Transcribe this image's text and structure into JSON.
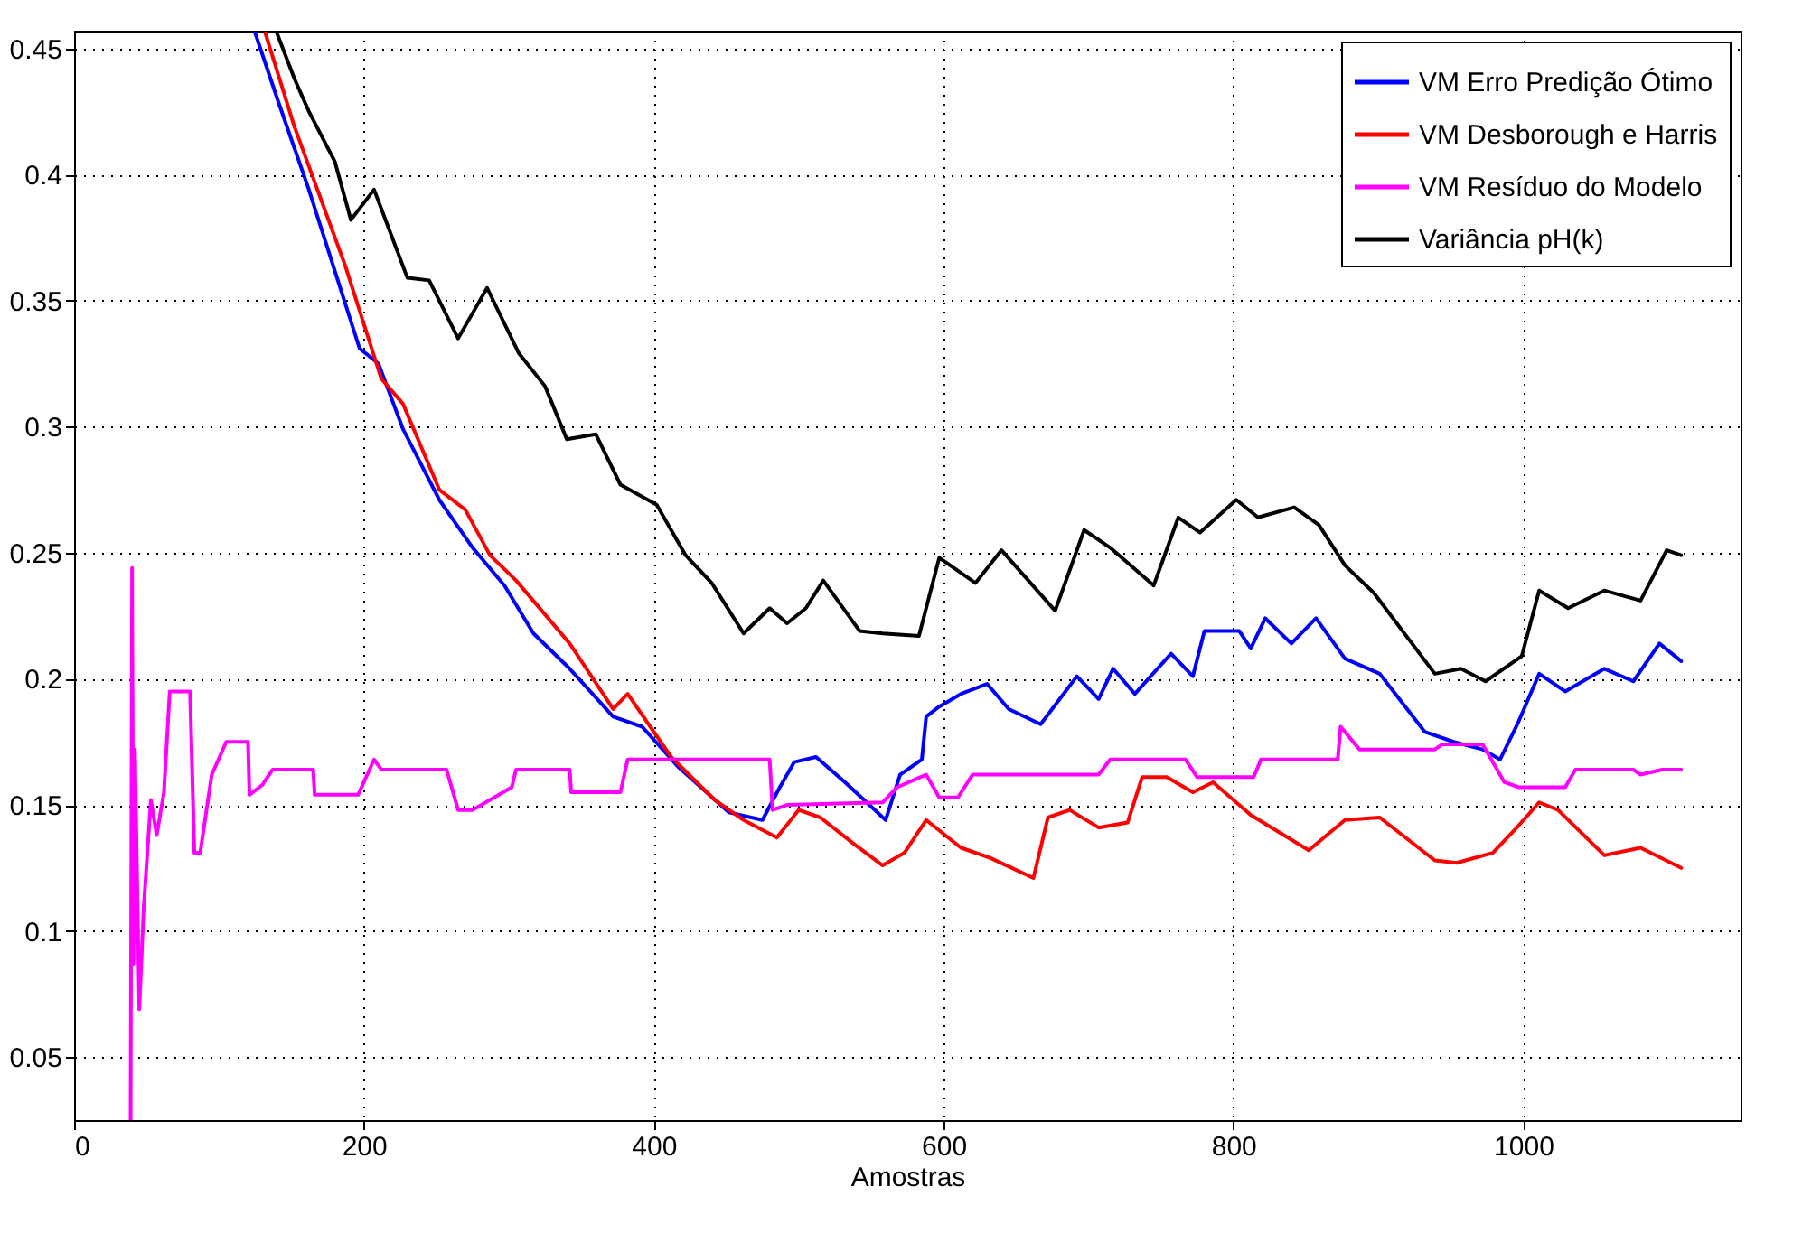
{
  "chart_data": {
    "type": "line",
    "xlabel": "Amostras",
    "xlim": [
      0,
      1150
    ],
    "ylim": [
      0.025,
      0.457
    ],
    "xticks": [
      0,
      200,
      400,
      600,
      800,
      1000
    ],
    "yticks": [
      0.05,
      0.1,
      0.15,
      0.2,
      0.25,
      0.3,
      0.35,
      0.4,
      0.45
    ],
    "grid": true,
    "legend": "top right",
    "marker": "none",
    "line_style": "solid",
    "series": [
      {
        "name": "VM Erro Predição Ótimo",
        "color": "#0000ff",
        "x": [
          125,
          142,
          162,
          182,
          197,
          210,
          227,
          252,
          275,
          297,
          317,
          342,
          372,
          392,
          417,
          452,
          475,
          487,
          497,
          512,
          532,
          560,
          570,
          585,
          588,
          597,
          612,
          630,
          645,
          667,
          692,
          707,
          717,
          732,
          757,
          772,
          780,
          804,
          812,
          822,
          840,
          857,
          877,
          901,
          932,
          952,
          972,
          984,
          996,
          1011,
          1029,
          1056,
          1076,
          1094,
          1109
        ],
        "values": [
          0.456,
          0.427,
          0.394,
          0.358,
          0.331,
          0.325,
          0.299,
          0.271,
          0.252,
          0.237,
          0.218,
          0.204,
          0.185,
          0.181,
          0.165,
          0.147,
          0.144,
          0.157,
          0.167,
          0.169,
          0.159,
          0.144,
          0.162,
          0.168,
          0.185,
          0.189,
          0.194,
          0.198,
          0.188,
          0.182,
          0.201,
          0.192,
          0.204,
          0.194,
          0.21,
          0.201,
          0.219,
          0.219,
          0.212,
          0.224,
          0.214,
          0.224,
          0.208,
          0.202,
          0.179,
          0.175,
          0.172,
          0.168,
          0.182,
          0.202,
          0.195,
          0.204,
          0.199,
          0.214,
          0.207
        ]
      },
      {
        "name": "VM Desborough e Harris",
        "color": "#ff0000",
        "x": [
          132,
          152,
          187,
          212,
          227,
          252,
          270,
          287,
          305,
          342,
          372,
          382,
          412,
          442,
          462,
          485,
          500,
          515,
          537,
          558,
          573,
          588,
          612,
          632,
          662,
          672,
          687,
          707,
          727,
          737,
          754,
          772,
          786,
          812,
          852,
          877,
          901,
          939,
          954,
          979,
          994,
          1011,
          1024,
          1056,
          1081,
          1109
        ],
        "values": [
          0.456,
          0.419,
          0.364,
          0.319,
          0.309,
          0.275,
          0.267,
          0.249,
          0.239,
          0.214,
          0.188,
          0.194,
          0.169,
          0.152,
          0.144,
          0.137,
          0.148,
          0.145,
          0.135,
          0.126,
          0.131,
          0.144,
          0.133,
          0.129,
          0.121,
          0.145,
          0.148,
          0.141,
          0.143,
          0.161,
          0.161,
          0.155,
          0.159,
          0.146,
          0.132,
          0.144,
          0.145,
          0.128,
          0.127,
          0.131,
          0.14,
          0.151,
          0.148,
          0.13,
          0.133,
          0.125
        ]
      },
      {
        "name": "VM Resíduo do Modelo",
        "color": "#ff00ff",
        "x": [
          39,
          40,
          41,
          42,
          45,
          48,
          53,
          57,
          62,
          66,
          80,
          83,
          87,
          95,
          105,
          120,
          121,
          130,
          137,
          165,
          166,
          196,
          207,
          212,
          257,
          265,
          275,
          287,
          302,
          305,
          342,
          343,
          377,
          382,
          480,
          482,
          492,
          558,
          568,
          588,
          597,
          610,
          620,
          707,
          715,
          767,
          775,
          814,
          819,
          872,
          874,
          887,
          939,
          944,
          972,
          987,
          997,
          1029,
          1036,
          1076,
          1081,
          1096,
          1109
        ],
        "values": [
          0.025,
          0.244,
          0.087,
          0.172,
          0.069,
          0.109,
          0.152,
          0.138,
          0.155,
          0.195,
          0.195,
          0.131,
          0.131,
          0.162,
          0.175,
          0.175,
          0.154,
          0.158,
          0.164,
          0.164,
          0.154,
          0.154,
          0.168,
          0.164,
          0.164,
          0.148,
          0.148,
          0.152,
          0.157,
          0.164,
          0.164,
          0.155,
          0.155,
          0.168,
          0.168,
          0.148,
          0.15,
          0.151,
          0.157,
          0.162,
          0.153,
          0.153,
          0.162,
          0.162,
          0.168,
          0.168,
          0.161,
          0.161,
          0.168,
          0.168,
          0.181,
          0.172,
          0.172,
          0.174,
          0.174,
          0.159,
          0.157,
          0.157,
          0.164,
          0.164,
          0.162,
          0.164,
          0.164
        ]
      },
      {
        "name": "Variância pH(k)",
        "color": "#000000",
        "x": [
          140,
          152,
          162,
          180,
          191,
          207,
          230,
          245,
          265,
          285,
          307,
          325,
          340,
          360,
          377,
          402,
          422,
          440,
          462,
          480,
          492,
          505,
          517,
          542,
          558,
          583,
          597,
          622,
          640,
          677,
          697,
          715,
          745,
          762,
          777,
          802,
          817,
          842,
          859,
          877,
          897,
          939,
          957,
          974,
          999,
          1011,
          1031,
          1056,
          1081,
          1099,
          1109
        ],
        "values": [
          0.456,
          0.438,
          0.425,
          0.405,
          0.382,
          0.394,
          0.359,
          0.358,
          0.335,
          0.355,
          0.329,
          0.316,
          0.295,
          0.297,
          0.277,
          0.269,
          0.249,
          0.238,
          0.218,
          0.228,
          0.222,
          0.228,
          0.239,
          0.219,
          0.218,
          0.217,
          0.248,
          0.238,
          0.251,
          0.227,
          0.259,
          0.252,
          0.237,
          0.264,
          0.258,
          0.271,
          0.264,
          0.268,
          0.261,
          0.245,
          0.234,
          0.202,
          0.204,
          0.199,
          0.209,
          0.235,
          0.228,
          0.235,
          0.231,
          0.251,
          0.249
        ]
      }
    ]
  }
}
